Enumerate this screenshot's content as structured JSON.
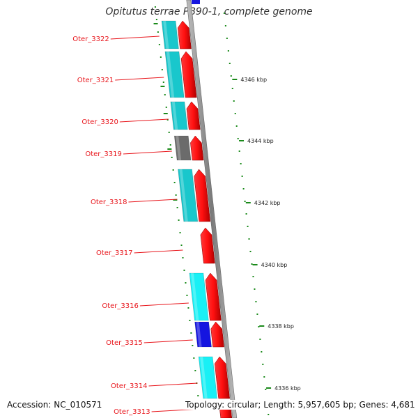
{
  "title": "Opitutus terrae PB90-1, complete genome",
  "footer": {
    "accession": "Accession: NC_010571",
    "topology": "Topology: circular;",
    "length": "Length: 5,957,605 bp;",
    "genes": "Genes: 4,681"
  },
  "scale_ticks": [
    {
      "label": "4346 kbp",
      "kbp": 4346
    },
    {
      "label": "4344 kbp",
      "kbp": 4344
    },
    {
      "label": "4342 kbp",
      "kbp": 4342
    },
    {
      "label": "4340 kbp",
      "kbp": 4340
    },
    {
      "label": "4338 kbp",
      "kbp": 4338
    },
    {
      "label": "4336 kbp",
      "kbp": 4336
    }
  ],
  "genes": [
    {
      "label": "Oter_3322",
      "cog_color": "#19c7cc"
    },
    {
      "label": "Oter_3321",
      "cog_color": "#19c7cc"
    },
    {
      "label": "Oter_3320",
      "cog_color": "#19c7cc"
    },
    {
      "label": "Oter_3319",
      "cog_color": "#6b6b6b"
    },
    {
      "label": "Oter_3318",
      "cog_color": "#19c7cc"
    },
    {
      "label": "Oter_3317",
      "cog_color": null
    },
    {
      "label": "Oter_3316",
      "cog_color": "#19f0f5"
    },
    {
      "label": "Oter_3315",
      "cog_color": "#1515e0"
    },
    {
      "label": "Oter_3314",
      "cog_color": "#19f0f5"
    },
    {
      "label": "Oter_3313",
      "cog_color": null
    }
  ],
  "colors": {
    "cds": "#ef0f12",
    "cog_cyan": "#19c7cc",
    "cog_blue": "#1515e0",
    "cog_gray": "#6b6b6b",
    "gc_skew": "#1a8a1a",
    "backbone": "#8c8c8c",
    "label_red": "#e8151b"
  }
}
